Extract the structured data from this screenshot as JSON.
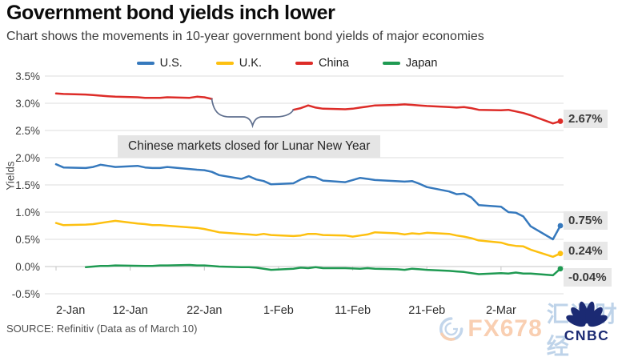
{
  "header": {
    "title": "Government bond yields inch lower",
    "subtitle": "Chart shows the movements in 10-year government bond yields of major economies"
  },
  "footer": {
    "source": "SOURCE: Refinitiv (Data as of March 10)"
  },
  "watermark": {
    "brand": "FX678",
    "cjk": "汇通财经"
  },
  "logo": {
    "text": "CNBC",
    "color": "#1b2a73"
  },
  "chart_data": {
    "type": "line",
    "title": "Government bond yields inch lower",
    "xlabel": "",
    "ylabel": "Yields",
    "ylim": [
      -0.5,
      3.5
    ],
    "x_domain": [
      0,
      68
    ],
    "x_unit": "days since 2-Jan",
    "grid": "horizontal",
    "legend_position": "top-center",
    "annotation": "Chinese markets closed for Lunar New Year",
    "brace_color": "#5f6f8e",
    "grid_color": "#dedede",
    "zero_axis_color": "#c4c4c4",
    "yticks": [
      {
        "v": 3.5,
        "label": "3.5%"
      },
      {
        "v": 3.0,
        "label": "3.0%"
      },
      {
        "v": 2.5,
        "label": "2.5%"
      },
      {
        "v": 2.0,
        "label": "2.0%"
      },
      {
        "v": 1.5,
        "label": "1.5%"
      },
      {
        "v": 1.0,
        "label": "1.0%"
      },
      {
        "v": 0.5,
        "label": "0.5%"
      },
      {
        "v": 0.0,
        "label": "0.0%"
      },
      {
        "v": -0.5,
        "label": "-0.5%"
      }
    ],
    "xticks": [
      {
        "d": 0,
        "label": "2-Jan"
      },
      {
        "d": 10,
        "label": "12-Jan"
      },
      {
        "d": 20,
        "label": "22-Jan"
      },
      {
        "d": 30,
        "label": "1-Feb"
      },
      {
        "d": 40,
        "label": "11-Feb"
      },
      {
        "d": 50,
        "label": "21-Feb"
      },
      {
        "d": 60,
        "label": "2-Mar"
      }
    ],
    "series": [
      {
        "name": "U.S.",
        "color": "#3679bd",
        "end_label": "0.75%",
        "end_value": 0.75,
        "segments": [
          [
            [
              0,
              1.88
            ],
            [
              1,
              1.82
            ],
            [
              4,
              1.81
            ],
            [
              5,
              1.83
            ],
            [
              6,
              1.87
            ],
            [
              7,
              1.85
            ],
            [
              8,
              1.83
            ],
            [
              11,
              1.85
            ],
            [
              12,
              1.82
            ],
            [
              13,
              1.81
            ],
            [
              14,
              1.81
            ],
            [
              15,
              1.83
            ],
            [
              19,
              1.78
            ],
            [
              20,
              1.77
            ],
            [
              21,
              1.74
            ],
            [
              22,
              1.68
            ],
            [
              25,
              1.61
            ],
            [
              26,
              1.66
            ],
            [
              27,
              1.6
            ],
            [
              28,
              1.57
            ],
            [
              29,
              1.51
            ],
            [
              32,
              1.53
            ],
            [
              33,
              1.6
            ],
            [
              34,
              1.65
            ],
            [
              35,
              1.64
            ],
            [
              36,
              1.58
            ],
            [
              39,
              1.55
            ],
            [
              40,
              1.59
            ],
            [
              41,
              1.63
            ],
            [
              42,
              1.61
            ],
            [
              43,
              1.59
            ],
            [
              47,
              1.56
            ],
            [
              48,
              1.57
            ],
            [
              49,
              1.52
            ],
            [
              50,
              1.46
            ],
            [
              53,
              1.38
            ],
            [
              54,
              1.33
            ],
            [
              55,
              1.34
            ],
            [
              56,
              1.27
            ],
            [
              57,
              1.13
            ],
            [
              60,
              1.1
            ],
            [
              61,
              1.0
            ],
            [
              62,
              0.99
            ],
            [
              63,
              0.92
            ],
            [
              64,
              0.74
            ],
            [
              67,
              0.5
            ],
            [
              68,
              0.75
            ]
          ]
        ]
      },
      {
        "name": "U.K.",
        "color": "#fdc010",
        "end_label": "0.24%",
        "end_value": 0.24,
        "segments": [
          [
            [
              0,
              0.8
            ],
            [
              1,
              0.76
            ],
            [
              4,
              0.77
            ],
            [
              5,
              0.78
            ],
            [
              6,
              0.8
            ],
            [
              7,
              0.82
            ],
            [
              8,
              0.84
            ],
            [
              11,
              0.79
            ],
            [
              12,
              0.78
            ],
            [
              13,
              0.76
            ],
            [
              14,
              0.76
            ],
            [
              15,
              0.75
            ],
            [
              19,
              0.71
            ],
            [
              20,
              0.69
            ],
            [
              21,
              0.66
            ],
            [
              22,
              0.63
            ],
            [
              25,
              0.6
            ],
            [
              26,
              0.59
            ],
            [
              27,
              0.58
            ],
            [
              28,
              0.6
            ],
            [
              29,
              0.58
            ],
            [
              32,
              0.56
            ],
            [
              33,
              0.57
            ],
            [
              34,
              0.6
            ],
            [
              35,
              0.6
            ],
            [
              36,
              0.58
            ],
            [
              39,
              0.57
            ],
            [
              40,
              0.55
            ],
            [
              41,
              0.57
            ],
            [
              42,
              0.59
            ],
            [
              43,
              0.63
            ],
            [
              46,
              0.61
            ],
            [
              47,
              0.59
            ],
            [
              48,
              0.61
            ],
            [
              49,
              0.6
            ],
            [
              50,
              0.62
            ],
            [
              53,
              0.6
            ],
            [
              54,
              0.57
            ],
            [
              55,
              0.55
            ],
            [
              56,
              0.52
            ],
            [
              57,
              0.48
            ],
            [
              60,
              0.44
            ],
            [
              61,
              0.4
            ],
            [
              62,
              0.38
            ],
            [
              63,
              0.37
            ],
            [
              64,
              0.31
            ],
            [
              67,
              0.18
            ],
            [
              68,
              0.24
            ]
          ]
        ]
      },
      {
        "name": "China",
        "color": "#dd2c28",
        "end_label": "2.67%",
        "end_value": 2.67,
        "gap_note": "Chinese markets closed for Lunar New Year",
        "segments": [
          [
            [
              0,
              3.18
            ],
            [
              1,
              3.17
            ],
            [
              4,
              3.16
            ],
            [
              5,
              3.15
            ],
            [
              6,
              3.14
            ],
            [
              7,
              3.13
            ],
            [
              8,
              3.12
            ],
            [
              11,
              3.11
            ],
            [
              12,
              3.1
            ],
            [
              13,
              3.1
            ],
            [
              14,
              3.1
            ],
            [
              15,
              3.11
            ],
            [
              18,
              3.1
            ],
            [
              19,
              3.12
            ],
            [
              20,
              3.11
            ],
            [
              21,
              3.08
            ]
          ],
          [
            [
              32,
              2.88
            ],
            [
              33,
              2.91
            ],
            [
              34,
              2.96
            ],
            [
              35,
              2.92
            ],
            [
              36,
              2.9
            ],
            [
              39,
              2.89
            ],
            [
              40,
              2.9
            ],
            [
              41,
              2.92
            ],
            [
              42,
              2.94
            ],
            [
              43,
              2.96
            ],
            [
              46,
              2.97
            ],
            [
              47,
              2.98
            ],
            [
              48,
              2.97
            ],
            [
              49,
              2.96
            ],
            [
              50,
              2.95
            ],
            [
              53,
              2.93
            ],
            [
              54,
              2.92
            ],
            [
              55,
              2.93
            ],
            [
              56,
              2.91
            ],
            [
              57,
              2.88
            ],
            [
              60,
              2.87
            ],
            [
              61,
              2.88
            ],
            [
              62,
              2.85
            ],
            [
              63,
              2.82
            ],
            [
              64,
              2.78
            ],
            [
              67,
              2.63
            ],
            [
              68,
              2.67
            ]
          ]
        ]
      },
      {
        "name": "Japan",
        "color": "#1f9a52",
        "end_label": "-0.04%",
        "end_value": -0.04,
        "segments": [
          [
            [
              4,
              -0.01
            ],
            [
              5,
              0.0
            ],
            [
              6,
              0.01
            ],
            [
              7,
              0.01
            ],
            [
              8,
              0.02
            ],
            [
              12,
              0.01
            ],
            [
              13,
              0.01
            ],
            [
              14,
              0.02
            ],
            [
              15,
              0.02
            ],
            [
              18,
              0.03
            ],
            [
              19,
              0.02
            ],
            [
              20,
              0.02
            ],
            [
              21,
              0.01
            ],
            [
              22,
              0.0
            ],
            [
              25,
              -0.01
            ],
            [
              26,
              -0.01
            ],
            [
              27,
              -0.02
            ],
            [
              28,
              -0.04
            ],
            [
              29,
              -0.06
            ],
            [
              32,
              -0.04
            ],
            [
              33,
              -0.02
            ],
            [
              34,
              -0.03
            ],
            [
              35,
              -0.01
            ],
            [
              36,
              -0.03
            ],
            [
              39,
              -0.03
            ],
            [
              41,
              -0.04
            ],
            [
              42,
              -0.03
            ],
            [
              43,
              -0.04
            ],
            [
              46,
              -0.05
            ],
            [
              47,
              -0.06
            ],
            [
              48,
              -0.04
            ],
            [
              49,
              -0.05
            ],
            [
              50,
              -0.06
            ],
            [
              53,
              -0.08
            ],
            [
              54,
              -0.09
            ],
            [
              55,
              -0.1
            ],
            [
              56,
              -0.12
            ],
            [
              57,
              -0.14
            ],
            [
              60,
              -0.12
            ],
            [
              61,
              -0.13
            ],
            [
              62,
              -0.11
            ],
            [
              63,
              -0.13
            ],
            [
              64,
              -0.13
            ],
            [
              67,
              -0.16
            ],
            [
              68,
              -0.04
            ]
          ]
        ]
      }
    ]
  }
}
